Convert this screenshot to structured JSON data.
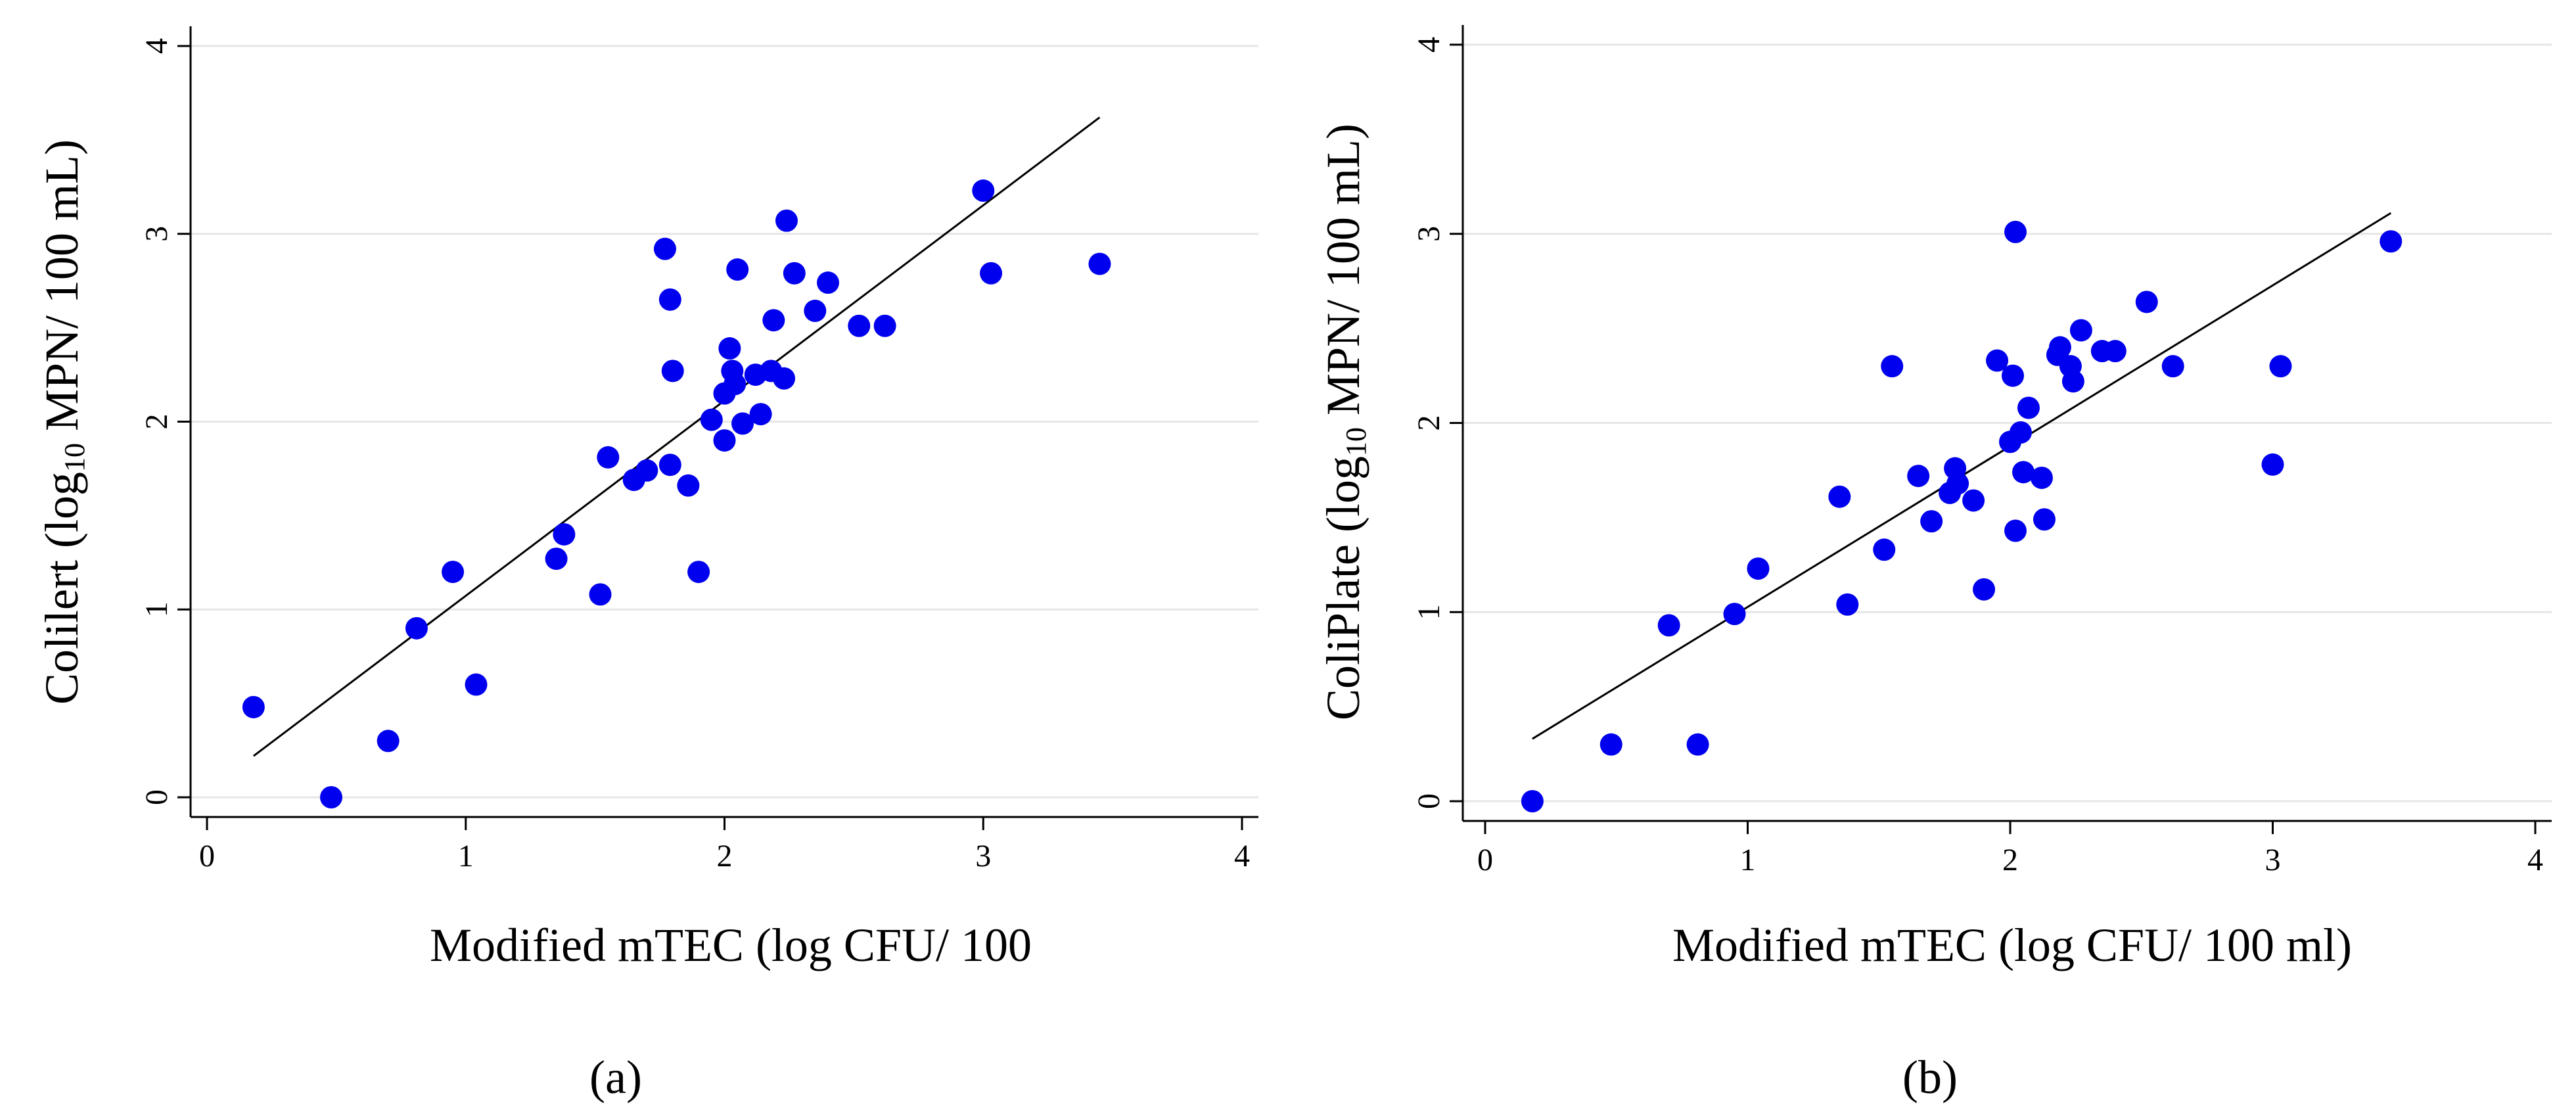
{
  "colors": {
    "marker": "#0000ee",
    "fit_line": "#000000",
    "gridline": "#e6e6e6",
    "axis": "#000000"
  },
  "chart_data": [
    {
      "panel_label": "(a)",
      "type": "scatter",
      "title": "",
      "xlabel": "Modified mTEC (log CFU/ 100",
      "ylabel": {
        "before": "Colilert (log",
        "subscript": "10",
        "after": " MPN/ 100 mL)"
      },
      "xlim": [
        0,
        4
      ],
      "ylim": [
        0,
        4
      ],
      "xticks": [
        0,
        1,
        2,
        3,
        4
      ],
      "yticks": [
        0,
        1,
        2,
        3,
        4
      ],
      "grid": "horizontal",
      "legend": "none",
      "fit_line": {
        "x": [
          0.18,
          3.45
        ],
        "y": [
          0.22,
          3.62
        ]
      },
      "points": [
        {
          "x": 0.18,
          "y": 0.48
        },
        {
          "x": 0.48,
          "y": 0.0
        },
        {
          "x": 0.7,
          "y": 0.3
        },
        {
          "x": 0.81,
          "y": 0.9
        },
        {
          "x": 0.95,
          "y": 1.2
        },
        {
          "x": 1.04,
          "y": 0.6
        },
        {
          "x": 1.35,
          "y": 1.27
        },
        {
          "x": 1.38,
          "y": 1.4
        },
        {
          "x": 1.52,
          "y": 1.08
        },
        {
          "x": 1.55,
          "y": 1.81
        },
        {
          "x": 1.65,
          "y": 1.69
        },
        {
          "x": 1.7,
          "y": 1.74
        },
        {
          "x": 1.77,
          "y": 2.92
        },
        {
          "x": 1.79,
          "y": 2.65
        },
        {
          "x": 1.8,
          "y": 2.27
        },
        {
          "x": 1.79,
          "y": 1.77
        },
        {
          "x": 1.86,
          "y": 1.66
        },
        {
          "x": 1.9,
          "y": 1.2
        },
        {
          "x": 1.95,
          "y": 2.01
        },
        {
          "x": 2.0,
          "y": 2.15
        },
        {
          "x": 2.0,
          "y": 1.9
        },
        {
          "x": 2.02,
          "y": 2.39
        },
        {
          "x": 2.03,
          "y": 2.27
        },
        {
          "x": 2.04,
          "y": 2.2
        },
        {
          "x": 2.05,
          "y": 2.81
        },
        {
          "x": 2.07,
          "y": 1.99
        },
        {
          "x": 2.12,
          "y": 2.25
        },
        {
          "x": 2.14,
          "y": 2.04
        },
        {
          "x": 2.18,
          "y": 2.27
        },
        {
          "x": 2.19,
          "y": 2.54
        },
        {
          "x": 2.23,
          "y": 2.23
        },
        {
          "x": 2.24,
          "y": 3.07
        },
        {
          "x": 2.27,
          "y": 2.79
        },
        {
          "x": 2.35,
          "y": 2.59
        },
        {
          "x": 2.4,
          "y": 2.74
        },
        {
          "x": 2.52,
          "y": 2.51
        },
        {
          "x": 2.62,
          "y": 2.51
        },
        {
          "x": 3.0,
          "y": 3.23
        },
        {
          "x": 3.03,
          "y": 2.79
        },
        {
          "x": 3.45,
          "y": 2.84
        }
      ]
    },
    {
      "panel_label": "(b)",
      "type": "scatter",
      "title": "",
      "xlabel": "Modified mTEC (log CFU/ 100 ml)",
      "ylabel": {
        "before": "ColiPlate (log",
        "subscript": "10",
        "after": " MPN/ 100 mL)"
      },
      "xlim": [
        0,
        4
      ],
      "ylim": [
        0,
        4
      ],
      "xticks": [
        0,
        1,
        2,
        3,
        4
      ],
      "yticks": [
        0,
        1,
        2,
        3,
        4
      ],
      "grid": "horizontal",
      "legend": "none",
      "fit_line": {
        "x": [
          0.18,
          3.45
        ],
        "y": [
          0.33,
          3.11
        ]
      },
      "points": [
        {
          "x": 0.18,
          "y": 0.0
        },
        {
          "x": 0.48,
          "y": 0.3
        },
        {
          "x": 0.7,
          "y": 0.93
        },
        {
          "x": 0.81,
          "y": 0.3
        },
        {
          "x": 0.95,
          "y": 0.99
        },
        {
          "x": 1.04,
          "y": 1.23
        },
        {
          "x": 1.35,
          "y": 1.61
        },
        {
          "x": 1.38,
          "y": 1.04
        },
        {
          "x": 1.52,
          "y": 1.33
        },
        {
          "x": 1.55,
          "y": 2.3
        },
        {
          "x": 1.65,
          "y": 1.72
        },
        {
          "x": 1.7,
          "y": 1.48
        },
        {
          "x": 1.77,
          "y": 1.63
        },
        {
          "x": 1.79,
          "y": 1.76
        },
        {
          "x": 1.8,
          "y": 1.68
        },
        {
          "x": 1.86,
          "y": 1.59
        },
        {
          "x": 1.9,
          "y": 1.12
        },
        {
          "x": 1.95,
          "y": 2.33
        },
        {
          "x": 2.0,
          "y": 1.9
        },
        {
          "x": 2.01,
          "y": 2.25
        },
        {
          "x": 2.02,
          "y": 3.01
        },
        {
          "x": 2.02,
          "y": 1.43
        },
        {
          "x": 2.04,
          "y": 1.95
        },
        {
          "x": 2.05,
          "y": 1.74
        },
        {
          "x": 2.07,
          "y": 2.08
        },
        {
          "x": 2.12,
          "y": 1.71
        },
        {
          "x": 2.13,
          "y": 1.49
        },
        {
          "x": 2.18,
          "y": 2.36
        },
        {
          "x": 2.19,
          "y": 2.4
        },
        {
          "x": 2.23,
          "y": 2.3
        },
        {
          "x": 2.24,
          "y": 2.22
        },
        {
          "x": 2.27,
          "y": 2.49
        },
        {
          "x": 2.35,
          "y": 2.38
        },
        {
          "x": 2.4,
          "y": 2.38
        },
        {
          "x": 2.52,
          "y": 2.64
        },
        {
          "x": 2.62,
          "y": 2.3
        },
        {
          "x": 3.0,
          "y": 1.78
        },
        {
          "x": 3.03,
          "y": 2.3
        },
        {
          "x": 3.45,
          "y": 2.96
        }
      ]
    }
  ]
}
